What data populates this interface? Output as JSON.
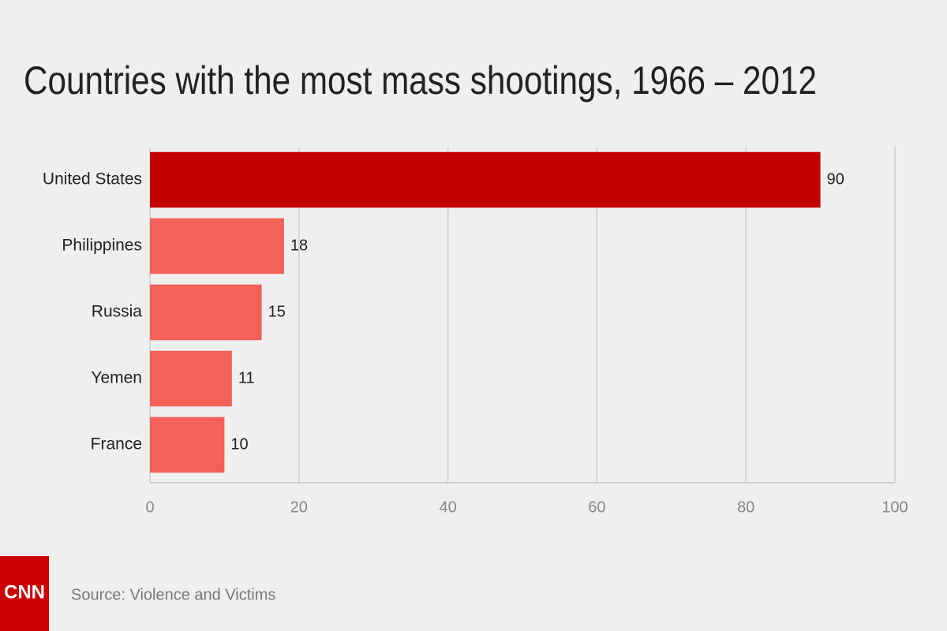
{
  "chart_data": {
    "type": "hbar",
    "title": "Countries with the most mass shootings, 1966 – 2012",
    "categories": [
      "United States",
      "Philippines",
      "Russia",
      "Yemen",
      "France"
    ],
    "values": [
      90,
      18,
      15,
      11,
      10
    ],
    "colors": [
      "#c30000",
      "#f4605a",
      "#f4605a",
      "#f4605a",
      "#f4605a"
    ],
    "xlim": [
      0,
      100
    ],
    "xticks": [
      0,
      20,
      40,
      60,
      80,
      100
    ],
    "grid": true,
    "source": "Source: Violence and Victims",
    "logo": "CNN"
  }
}
